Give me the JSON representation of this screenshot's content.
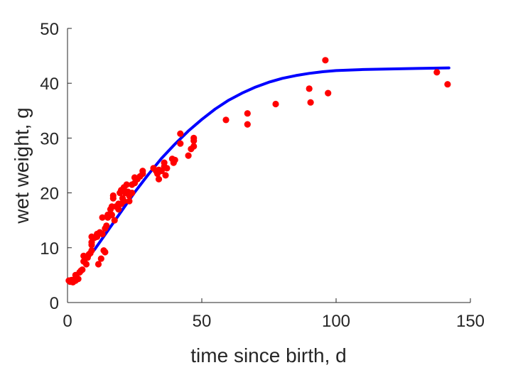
{
  "chart_data": {
    "type": "scatter",
    "title": "",
    "xlabel": "time since birth, d",
    "ylabel": "wet weight, g",
    "xlim": [
      0,
      150
    ],
    "ylim": [
      0,
      50
    ],
    "xticks": [
      0,
      50,
      100,
      150
    ],
    "yticks": [
      0,
      10,
      20,
      30,
      40,
      50
    ],
    "xtick_labels": [
      "0",
      "50",
      "100",
      "150"
    ],
    "ytick_labels": [
      "0",
      "10",
      "20",
      "30",
      "40",
      "50"
    ],
    "grid": false,
    "legend": "none",
    "series": [
      {
        "kind": "scatter",
        "color": "#ff0000",
        "points": [
          [
            0.5,
            4.0
          ],
          [
            1.0,
            3.8
          ],
          [
            1.5,
            4.1
          ],
          [
            2.0,
            3.7
          ],
          [
            2.5,
            4.2
          ],
          [
            3.0,
            4.0
          ],
          [
            3.0,
            5.0
          ],
          [
            3.5,
            4.5
          ],
          [
            4.0,
            4.3
          ],
          [
            4.5,
            5.5
          ],
          [
            5.0,
            5.8
          ],
          [
            5.5,
            6.0
          ],
          [
            6.0,
            7.5
          ],
          [
            6.0,
            8.5
          ],
          [
            6.5,
            8.0
          ],
          [
            7.0,
            7.0
          ],
          [
            7.5,
            8.2
          ],
          [
            8.0,
            8.8
          ],
          [
            8.5,
            9.0
          ],
          [
            9.0,
            9.5
          ],
          [
            9.0,
            10.5
          ],
          [
            9.0,
            11.0
          ],
          [
            9.0,
            12.0
          ],
          [
            10.0,
            11.8
          ],
          [
            10.5,
            12.0
          ],
          [
            11.0,
            12.5
          ],
          [
            11.0,
            12.0
          ],
          [
            11.5,
            7.0
          ],
          [
            12.0,
            12.8
          ],
          [
            12.5,
            8.0
          ],
          [
            13.0,
            12.5
          ],
          [
            13.0,
            15.5
          ],
          [
            13.5,
            9.5
          ],
          [
            14.0,
            9.2
          ],
          [
            14.0,
            13.5
          ],
          [
            14.5,
            14.0
          ],
          [
            15.0,
            15.5
          ],
          [
            15.0,
            16.0
          ],
          [
            15.5,
            15.8
          ],
          [
            16.0,
            17.0
          ],
          [
            16.5,
            17.5
          ],
          [
            16.5,
            16.0
          ],
          [
            17.0,
            19.0
          ],
          [
            17.0,
            19.5
          ],
          [
            17.5,
            15.0
          ],
          [
            18.0,
            17.5
          ],
          [
            19.0,
            17.0
          ],
          [
            19.0,
            18.0
          ],
          [
            19.5,
            20.0
          ],
          [
            20.0,
            20.5
          ],
          [
            20.0,
            18.0
          ],
          [
            20.5,
            19.0
          ],
          [
            21.0,
            21.0
          ],
          [
            21.0,
            18.5
          ],
          [
            21.5,
            20.0
          ],
          [
            22.0,
            21.5
          ],
          [
            22.5,
            20.2
          ],
          [
            23.0,
            19.5
          ],
          [
            23.0,
            18.5
          ],
          [
            24.0,
            20.0
          ],
          [
            24.0,
            21.5
          ],
          [
            25.0,
            22.8
          ],
          [
            25.0,
            21.8
          ],
          [
            26.0,
            22.5
          ],
          [
            27.0,
            23.0
          ],
          [
            28.0,
            23.5
          ],
          [
            28.0,
            24.0
          ],
          [
            32.0,
            24.5
          ],
          [
            33.0,
            24.0
          ],
          [
            33.5,
            23.5
          ],
          [
            34.0,
            22.5
          ],
          [
            34.0,
            24.2
          ],
          [
            35.0,
            24.0
          ],
          [
            36.0,
            25.5
          ],
          [
            36.0,
            24.8
          ],
          [
            36.5,
            23.2
          ],
          [
            37.0,
            24.5
          ],
          [
            39.0,
            26.2
          ],
          [
            39.5,
            25.5
          ],
          [
            40.0,
            26.0
          ],
          [
            42.0,
            30.8
          ],
          [
            42.0,
            29.0
          ],
          [
            45.0,
            26.8
          ],
          [
            46.0,
            28.0
          ],
          [
            47.0,
            30.0
          ],
          [
            47.0,
            29.5
          ],
          [
            47.0,
            28.5
          ],
          [
            59.0,
            33.3
          ],
          [
            67.0,
            34.5
          ],
          [
            67.0,
            32.5
          ],
          [
            77.5,
            36.2
          ],
          [
            90.0,
            39.0
          ],
          [
            90.5,
            36.5
          ],
          [
            96.0,
            44.2
          ],
          [
            97.0,
            38.2
          ],
          [
            137.5,
            42.0
          ],
          [
            141.5,
            39.8
          ]
        ]
      },
      {
        "kind": "line",
        "color": "#0000ff",
        "points": [
          [
            10,
            9.6
          ],
          [
            15,
            13.1
          ],
          [
            20,
            16.6
          ],
          [
            25,
            20.1
          ],
          [
            30,
            23.3
          ],
          [
            35,
            26.3
          ],
          [
            40,
            28.9
          ],
          [
            45,
            31.3
          ],
          [
            50,
            33.4
          ],
          [
            55,
            35.3
          ],
          [
            60,
            36.9
          ],
          [
            65,
            38.2
          ],
          [
            70,
            39.3
          ],
          [
            75,
            40.2
          ],
          [
            80,
            40.9
          ],
          [
            85,
            41.4
          ],
          [
            90,
            41.8
          ],
          [
            95,
            42.1
          ],
          [
            100,
            42.3
          ],
          [
            110,
            42.5
          ],
          [
            120,
            42.6
          ],
          [
            130,
            42.7
          ],
          [
            142,
            42.8
          ]
        ]
      }
    ]
  }
}
